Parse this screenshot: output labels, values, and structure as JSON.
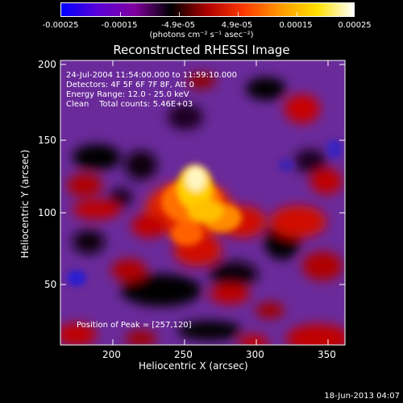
{
  "colorbar": {
    "tick_labels": [
      "-0.00025",
      "-0.00015",
      "-4.9e-05",
      "4.9e-05",
      "0.00015",
      "0.00025"
    ],
    "units": "(photons cm⁻² s⁻¹ asec⁻²)",
    "colors": [
      "#0000ff",
      "#5a00d8",
      "#8000a0",
      "#000000",
      "#b00000",
      "#ff3a00",
      "#ff9a00",
      "#ffe000",
      "#ffffff"
    ]
  },
  "title": "Reconstructed RHESSI Image",
  "info": {
    "time": "24-Jul-2004 11:54:00.000 to 11:59:10.000",
    "detectors": "Detectors: 4F 5F 6F 7F 8F, Att 0",
    "energy": "Energy Range: 12.0 - 25.0 keV",
    "clean": "Clean    Total counts: 5.46E+03"
  },
  "peak": "Position of Peak = [257,120]",
  "axes": {
    "xlabel": "Heliocentric X (arcsec)",
    "ylabel": "Heliocentric Y (arcsec)",
    "xticks": [
      "200",
      "250",
      "300",
      "350"
    ],
    "yticks": [
      "50",
      "100",
      "150",
      "200"
    ]
  },
  "stamp": "18-Jun-2013 04:07"
}
